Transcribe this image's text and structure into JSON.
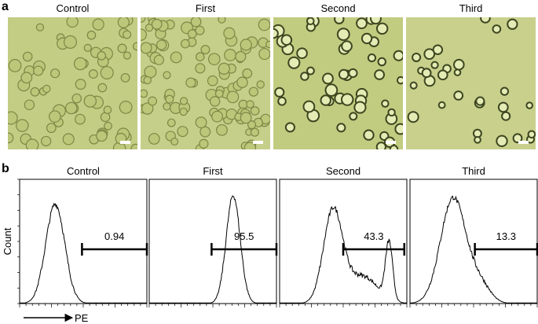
{
  "panel_a": {
    "label": "a",
    "images": [
      {
        "title": "Control"
      },
      {
        "title": "First"
      },
      {
        "title": "Second"
      },
      {
        "title": "Third"
      }
    ]
  },
  "panel_b": {
    "label": "b",
    "y_axis_label": "Count",
    "x_axis_label": "PE",
    "plots": [
      {
        "title": "Control",
        "gate_value": "0.94"
      },
      {
        "title": "First",
        "gate_value": "95.5"
      },
      {
        "title": "Second",
        "gate_value": "43.3"
      },
      {
        "title": "Third",
        "gate_value": "13.3"
      }
    ]
  }
}
